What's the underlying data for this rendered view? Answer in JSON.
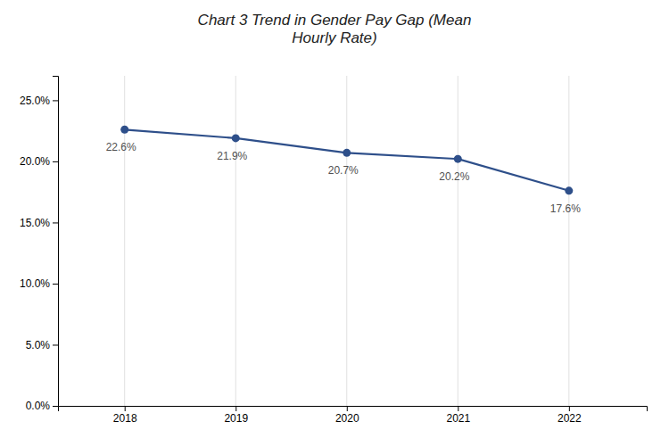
{
  "chart_data": {
    "type": "line",
    "title": "Chart 3 Trend in Gender Pay Gap (Mean\nHourly Rate)",
    "x": [
      2018,
      2019,
      2020,
      2021,
      2022
    ],
    "values": [
      22.6,
      21.9,
      20.7,
      20.2,
      17.6
    ],
    "value_labels": [
      "22.6%",
      "21.9%",
      "20.7%",
      "20.2%",
      "17.6%"
    ],
    "data_labels": true,
    "color": "#2E4F8A",
    "marker": "circle",
    "xlim": [
      2017.4,
      2022.7
    ],
    "xticks": [
      2018,
      2019,
      2020,
      2021,
      2022
    ],
    "ylim": [
      0,
      27
    ],
    "yticks": [
      {
        "value": 0,
        "label": "0.0%"
      },
      {
        "value": 5,
        "label": "5.0%"
      },
      {
        "value": 10,
        "label": "10.0%"
      },
      {
        "value": 15,
        "label": "15.0%"
      },
      {
        "value": 20,
        "label": "20.0%"
      },
      {
        "value": 25,
        "label": "25.0%"
      }
    ],
    "grid": "x"
  }
}
